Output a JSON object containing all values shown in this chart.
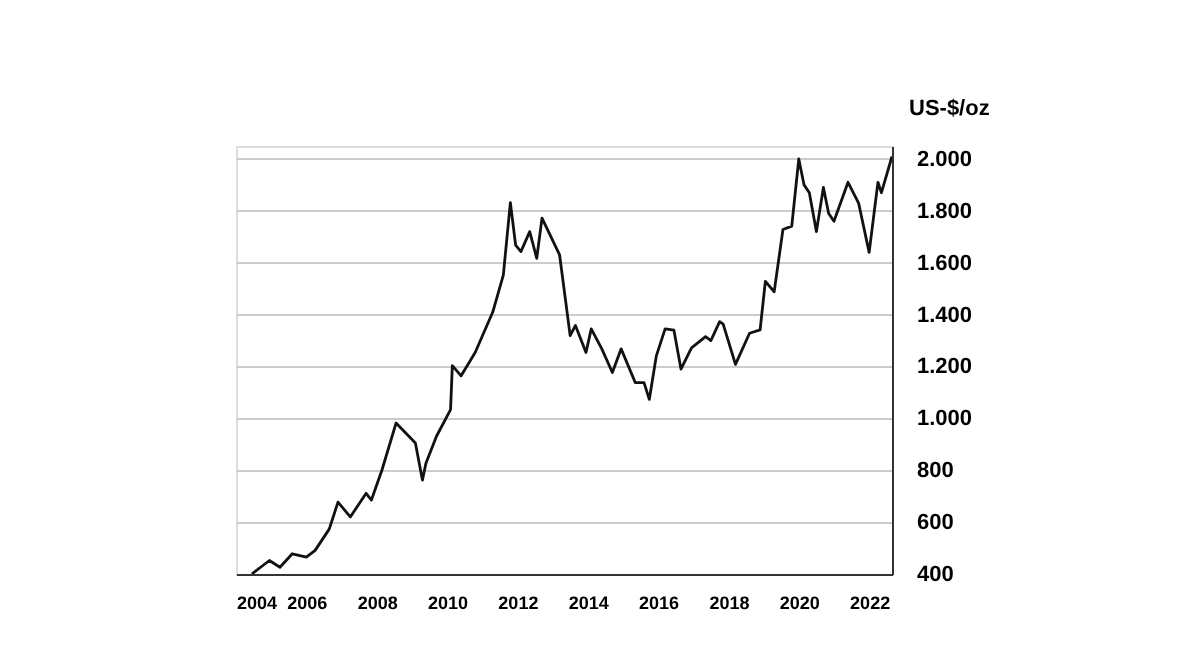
{
  "chart_data": {
    "type": "line",
    "ylabel": "US-$/oz",
    "x": [
      2004.45,
      2004.7,
      2004.95,
      2005.25,
      2005.6,
      2006.0,
      2006.25,
      2006.65,
      2006.9,
      2007.25,
      2007.7,
      2007.85,
      2008.15,
      2008.55,
      2009.1,
      2009.3,
      2009.4,
      2009.7,
      2010.1,
      2010.15,
      2010.4,
      2010.8,
      2011.3,
      2011.6,
      2011.8,
      2011.95,
      2012.1,
      2012.35,
      2012.55,
      2012.7,
      2013.2,
      2013.5,
      2013.65,
      2013.95,
      2014.1,
      2014.4,
      2014.7,
      2014.95,
      2015.35,
      2015.6,
      2015.75,
      2015.95,
      2016.2,
      2016.45,
      2016.65,
      2016.95,
      2017.35,
      2017.5,
      2017.75,
      2017.85,
      2018.2,
      2018.6,
      2018.9,
      2019.05,
      2019.3,
      2019.55,
      2019.8,
      2020.0,
      2020.15,
      2020.3,
      2020.5,
      2020.7,
      2020.85,
      2021.0,
      2021.4,
      2021.7,
      2022.0,
      2022.25,
      2022.35,
      2022.65
    ],
    "series": [
      {
        "color": "#111111",
        "values": [
          400,
          426,
          452,
          426,
          478,
          465,
          491,
          573,
          677,
          620,
          711,
          685,
          801,
          982,
          905,
          762,
          827,
          931,
          1034,
          1203,
          1164,
          1254,
          1410,
          1552,
          1832,
          1668,
          1643,
          1720,
          1617,
          1772,
          1630,
          1319,
          1358,
          1254,
          1345,
          1268,
          1177,
          1268,
          1138,
          1138,
          1073,
          1241,
          1345,
          1340,
          1190,
          1272,
          1315,
          1300,
          1373,
          1363,
          1208,
          1328,
          1341,
          1528,
          1488,
          1728,
          1741,
          2000,
          1900,
          1870,
          1720,
          1890,
          1790,
          1760,
          1910,
          1830,
          1640,
          1910,
          1870,
          2010
        ]
      }
    ],
    "xlim": [
      2004,
      2022.65
    ],
    "xticks": [
      2004,
      2006,
      2008,
      2010,
      2012,
      2014,
      2016,
      2018,
      2020,
      2022
    ],
    "ylim": [
      400,
      2050
    ],
    "yticks": [
      400,
      600,
      800,
      {
        "value": 1000,
        "label": "1.000"
      },
      {
        "value": 1200,
        "label": "1.200"
      },
      {
        "value": 1400,
        "label": "1.400"
      },
      {
        "value": 1600,
        "label": "1.600"
      },
      {
        "value": 1800,
        "label": "1.800"
      },
      {
        "value": 2000,
        "label": "2.000"
      }
    ],
    "grid": "y",
    "legend": false,
    "marker": "none",
    "line_style": "solid"
  }
}
